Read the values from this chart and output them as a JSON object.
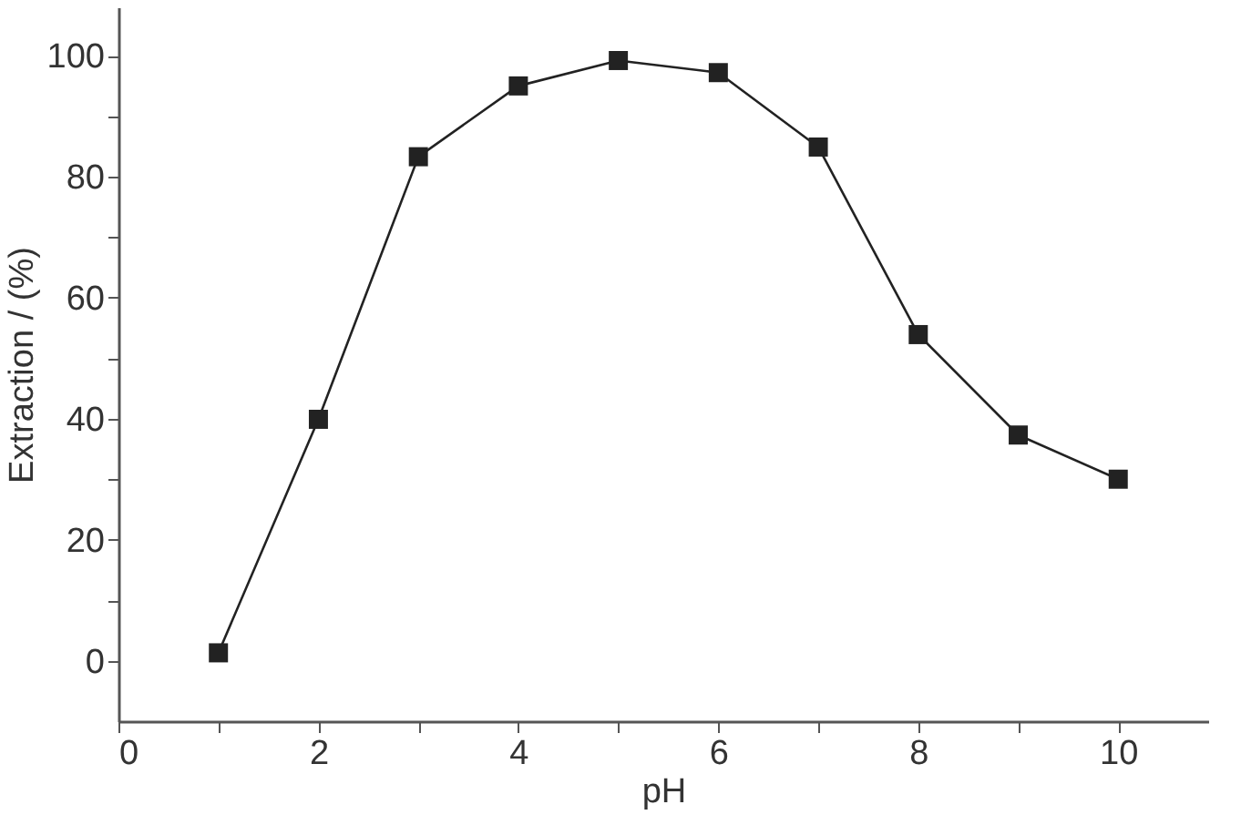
{
  "chart_data": {
    "type": "line",
    "xlabel": "pH",
    "ylabel": "Extraction / (%)",
    "x": [
      1,
      2,
      3,
      4,
      5,
      6,
      7,
      8,
      9,
      10
    ],
    "series": [
      {
        "color": "#222222",
        "values": [
          1.3,
          39.9,
          83.3,
          95.0,
          99.2,
          97.2,
          84.9,
          53.9,
          37.3,
          30.0
        ]
      }
    ],
    "xlim": [
      0,
      10.9
    ],
    "ylim": [
      -10,
      108
    ],
    "xticks": [
      0,
      {
        "value": 1,
        "label": null
      },
      2,
      {
        "value": 3,
        "label": null
      },
      4,
      {
        "value": 5,
        "label": null
      },
      6,
      {
        "value": 7,
        "label": null
      },
      8,
      {
        "value": 9,
        "label": null
      },
      10
    ],
    "yticks": [
      0,
      {
        "value": 10,
        "label": null
      },
      20,
      {
        "value": 30,
        "label": null
      },
      40,
      {
        "value": 50,
        "label": null
      },
      60,
      {
        "value": 70,
        "label": null
      },
      80,
      {
        "value": 90,
        "label": null
      },
      100
    ],
    "marker": "square",
    "line_style": "solid",
    "grid": false
  }
}
